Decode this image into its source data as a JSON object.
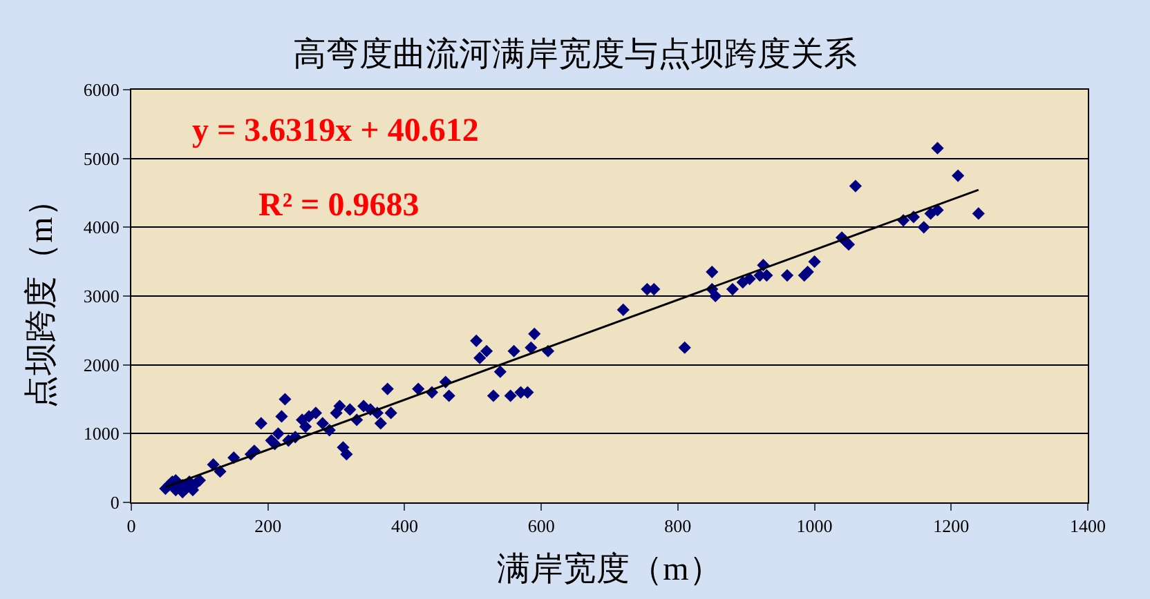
{
  "chart_data": {
    "type": "scatter",
    "title": "高弯度曲流河满岸宽度与点坝跨度关系",
    "xlabel": "满岸宽度（m）",
    "ylabel": "点坝跨度（m）",
    "xlim": [
      0,
      1400
    ],
    "xticks": [
      0,
      200,
      400,
      600,
      800,
      1000,
      1200,
      1400
    ],
    "ylim": [
      0,
      6000
    ],
    "yticks": [
      0,
      1000,
      2000,
      3000,
      4000,
      5000,
      6000
    ],
    "grid": "y",
    "annotations": [
      "y = 3.6319x + 40.612",
      "R² = 0.9683"
    ],
    "series": [
      {
        "color": "#000080",
        "marker": "diamond",
        "x": [
          50,
          55,
          60,
          65,
          75,
          80,
          85,
          95,
          100,
          65,
          75,
          90,
          120,
          130,
          150,
          175,
          180,
          190,
          205,
          210,
          215,
          220,
          225,
          230,
          240,
          250,
          255,
          260,
          270,
          280,
          290,
          300,
          305,
          310,
          315,
          320,
          330,
          340,
          350,
          360,
          365,
          375,
          380,
          420,
          440,
          460,
          465,
          505,
          510,
          520,
          530,
          540,
          555,
          560,
          570,
          580,
          585,
          590,
          610,
          720,
          755,
          765,
          810,
          850,
          850,
          855,
          880,
          895,
          905,
          920,
          925,
          930,
          960,
          985,
          990,
          1000,
          1040,
          1045,
          1050,
          1060,
          1130,
          1145,
          1160,
          1170,
          1180,
          1180,
          1210,
          1240
        ],
        "values": [
          200,
          250,
          300,
          180,
          250,
          200,
          300,
          280,
          320,
          320,
          150,
          180,
          550,
          450,
          650,
          700,
          750,
          1150,
          900,
          850,
          1000,
          1250,
          1500,
          900,
          950,
          1200,
          1100,
          1250,
          1300,
          1150,
          1050,
          1300,
          1400,
          800,
          700,
          1350,
          1200,
          1400,
          1350,
          1300,
          1150,
          1650,
          1300,
          1650,
          1600,
          1750,
          1550,
          2350,
          2100,
          2200,
          1550,
          1900,
          1550,
          2200,
          1600,
          1600,
          2250,
          2450,
          2200,
          2800,
          3100,
          3100,
          2250,
          3100,
          3350,
          3000,
          3100,
          3200,
          3250,
          3300,
          3450,
          3300,
          3300,
          3300,
          3350,
          3500,
          3850,
          3800,
          3750,
          4600,
          4100,
          4150,
          4000,
          4200,
          4250,
          5150,
          4750,
          4200
        ]
      },
      {
        "type": "line",
        "color": "#000000",
        "x": [
          50,
          1240
        ],
        "values": [
          222,
          4544
        ]
      }
    ]
  }
}
